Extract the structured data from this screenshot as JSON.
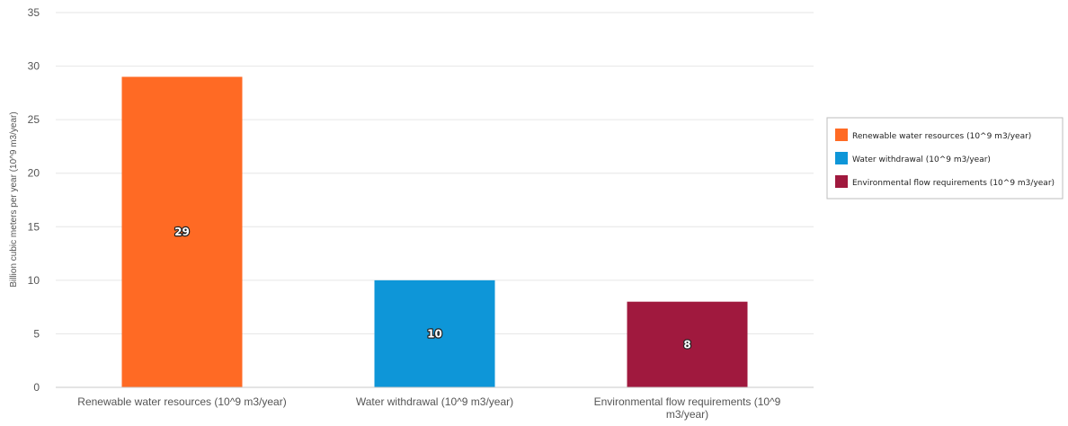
{
  "chart_data": {
    "type": "bar",
    "categories": [
      "Renewable water resources (10^9 m3/year)",
      "Water withdrawal (10^9 m3/year)",
      "Environmental flow requirements (10^9 m3/year)"
    ],
    "category_label_lines": [
      [
        "Renewable water resources (10^9 m3/year)"
      ],
      [
        "Water withdrawal (10^9 m3/year)"
      ],
      [
        "Environmental flow requirements (10^9",
        "m3/year)"
      ]
    ],
    "values": [
      29,
      10,
      8
    ],
    "data_labels": [
      "29",
      "10",
      "8"
    ],
    "colors": [
      "#ff6a24",
      "#0e96d8",
      "#a0193e"
    ],
    "ylabel": "Billion cubic meters per year (10^9 m3/year)",
    "ylim": [
      0,
      35
    ],
    "yticks": [
      "0",
      "5",
      "10",
      "15",
      "20",
      "25",
      "30",
      "35"
    ],
    "ytick_values": [
      0,
      5,
      10,
      15,
      20,
      25,
      30,
      35
    ],
    "grid": true,
    "legend": {
      "placement": "right",
      "entries": [
        {
          "label": "Renewable water resources (10^9 m3/year)",
          "color": "#ff6a24"
        },
        {
          "label": "Water withdrawal (10^9 m3/year)",
          "color": "#0e96d8"
        },
        {
          "label": "Environmental flow requirements (10^9 m3/year)",
          "color": "#a0193e"
        }
      ]
    }
  }
}
